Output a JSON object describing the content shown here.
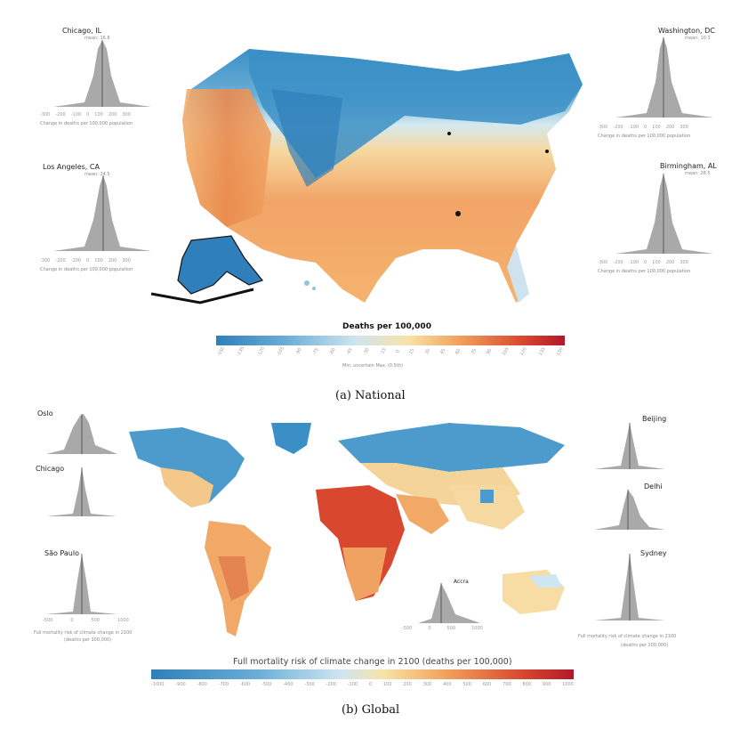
{
  "national": {
    "caption": "(a) National",
    "legend": {
      "title": "Deaths per 100,000",
      "subtitle": "Min. uncertain   Max. (0.5th)",
      "ticks": [
        "-150",
        "-135",
        "-120",
        "-105",
        "-90",
        "-75",
        "-60",
        "-45",
        "-30",
        "-15",
        "0",
        "15",
        "30",
        "45",
        "60",
        "75",
        "90",
        "105",
        "120",
        "135",
        "150"
      ],
      "colors": [
        "#2f7fba",
        "#6aaed6",
        "#cfe5f0",
        "#f7e3a6",
        "#f2a05c",
        "#d8472e",
        "#b2182b"
      ]
    },
    "insets": [
      {
        "city": "Chicago, IL",
        "sub": "mean: 16.8",
        "axis": [
          "-300",
          "-200",
          "-100",
          "0",
          "100",
          "200",
          "300"
        ],
        "xlabel": "Change in deaths per 100,000 population"
      },
      {
        "city": "Los Angeles, CA",
        "sub": "mean: 24.5",
        "axis": [
          "-300",
          "-200",
          "-100",
          "0",
          "100",
          "200",
          "300"
        ],
        "xlabel": "Change in deaths per 100,000 population"
      },
      {
        "city": "Washington, DC",
        "sub": "mean: 10.3",
        "axis": [
          "-300",
          "-200",
          "-100",
          "0",
          "100",
          "200",
          "300"
        ],
        "xlabel": "Change in deaths per 100,000 population"
      },
      {
        "city": "Birmingham, AL",
        "sub": "mean: 28.5",
        "axis": [
          "-300",
          "-200",
          "-100",
          "0",
          "100",
          "200",
          "300"
        ],
        "xlabel": "Change in deaths per 100,000 population"
      }
    ]
  },
  "global": {
    "caption": "(b) Global",
    "legend": {
      "title": "Full mortality risk of climate change in 2100 (deaths per 100,000)",
      "ticks": [
        "-1000",
        "-900",
        "-800",
        "-700",
        "-600",
        "-500",
        "-400",
        "-300",
        "-200",
        "-100",
        "0",
        "100",
        "200",
        "300",
        "400",
        "500",
        "600",
        "700",
        "800",
        "900",
        "1000"
      ],
      "colors": [
        "#2f7fba",
        "#6aaed6",
        "#cfe5f0",
        "#f7e3a6",
        "#f2a05c",
        "#d8472e",
        "#b2182b"
      ]
    },
    "insets": [
      {
        "city": "Oslo"
      },
      {
        "city": "Chicago"
      },
      {
        "city": "São Paulo"
      },
      {
        "city": "Beijing"
      },
      {
        "city": "Delhi"
      },
      {
        "city": "Sydney"
      },
      {
        "city": "Accra"
      }
    ],
    "left_xlabel": [
      "Full mortality risk of climate change in 2100",
      "(deaths per 100,000)"
    ],
    "right_xlabel": [
      "Full mortality risk of climate change in 2100",
      "(deaths per 100,000)"
    ],
    "left_axis": [
      "-500",
      "0",
      "500",
      "1000"
    ],
    "accra_axis": [
      "-500",
      "0",
      "500",
      "1000"
    ]
  }
}
